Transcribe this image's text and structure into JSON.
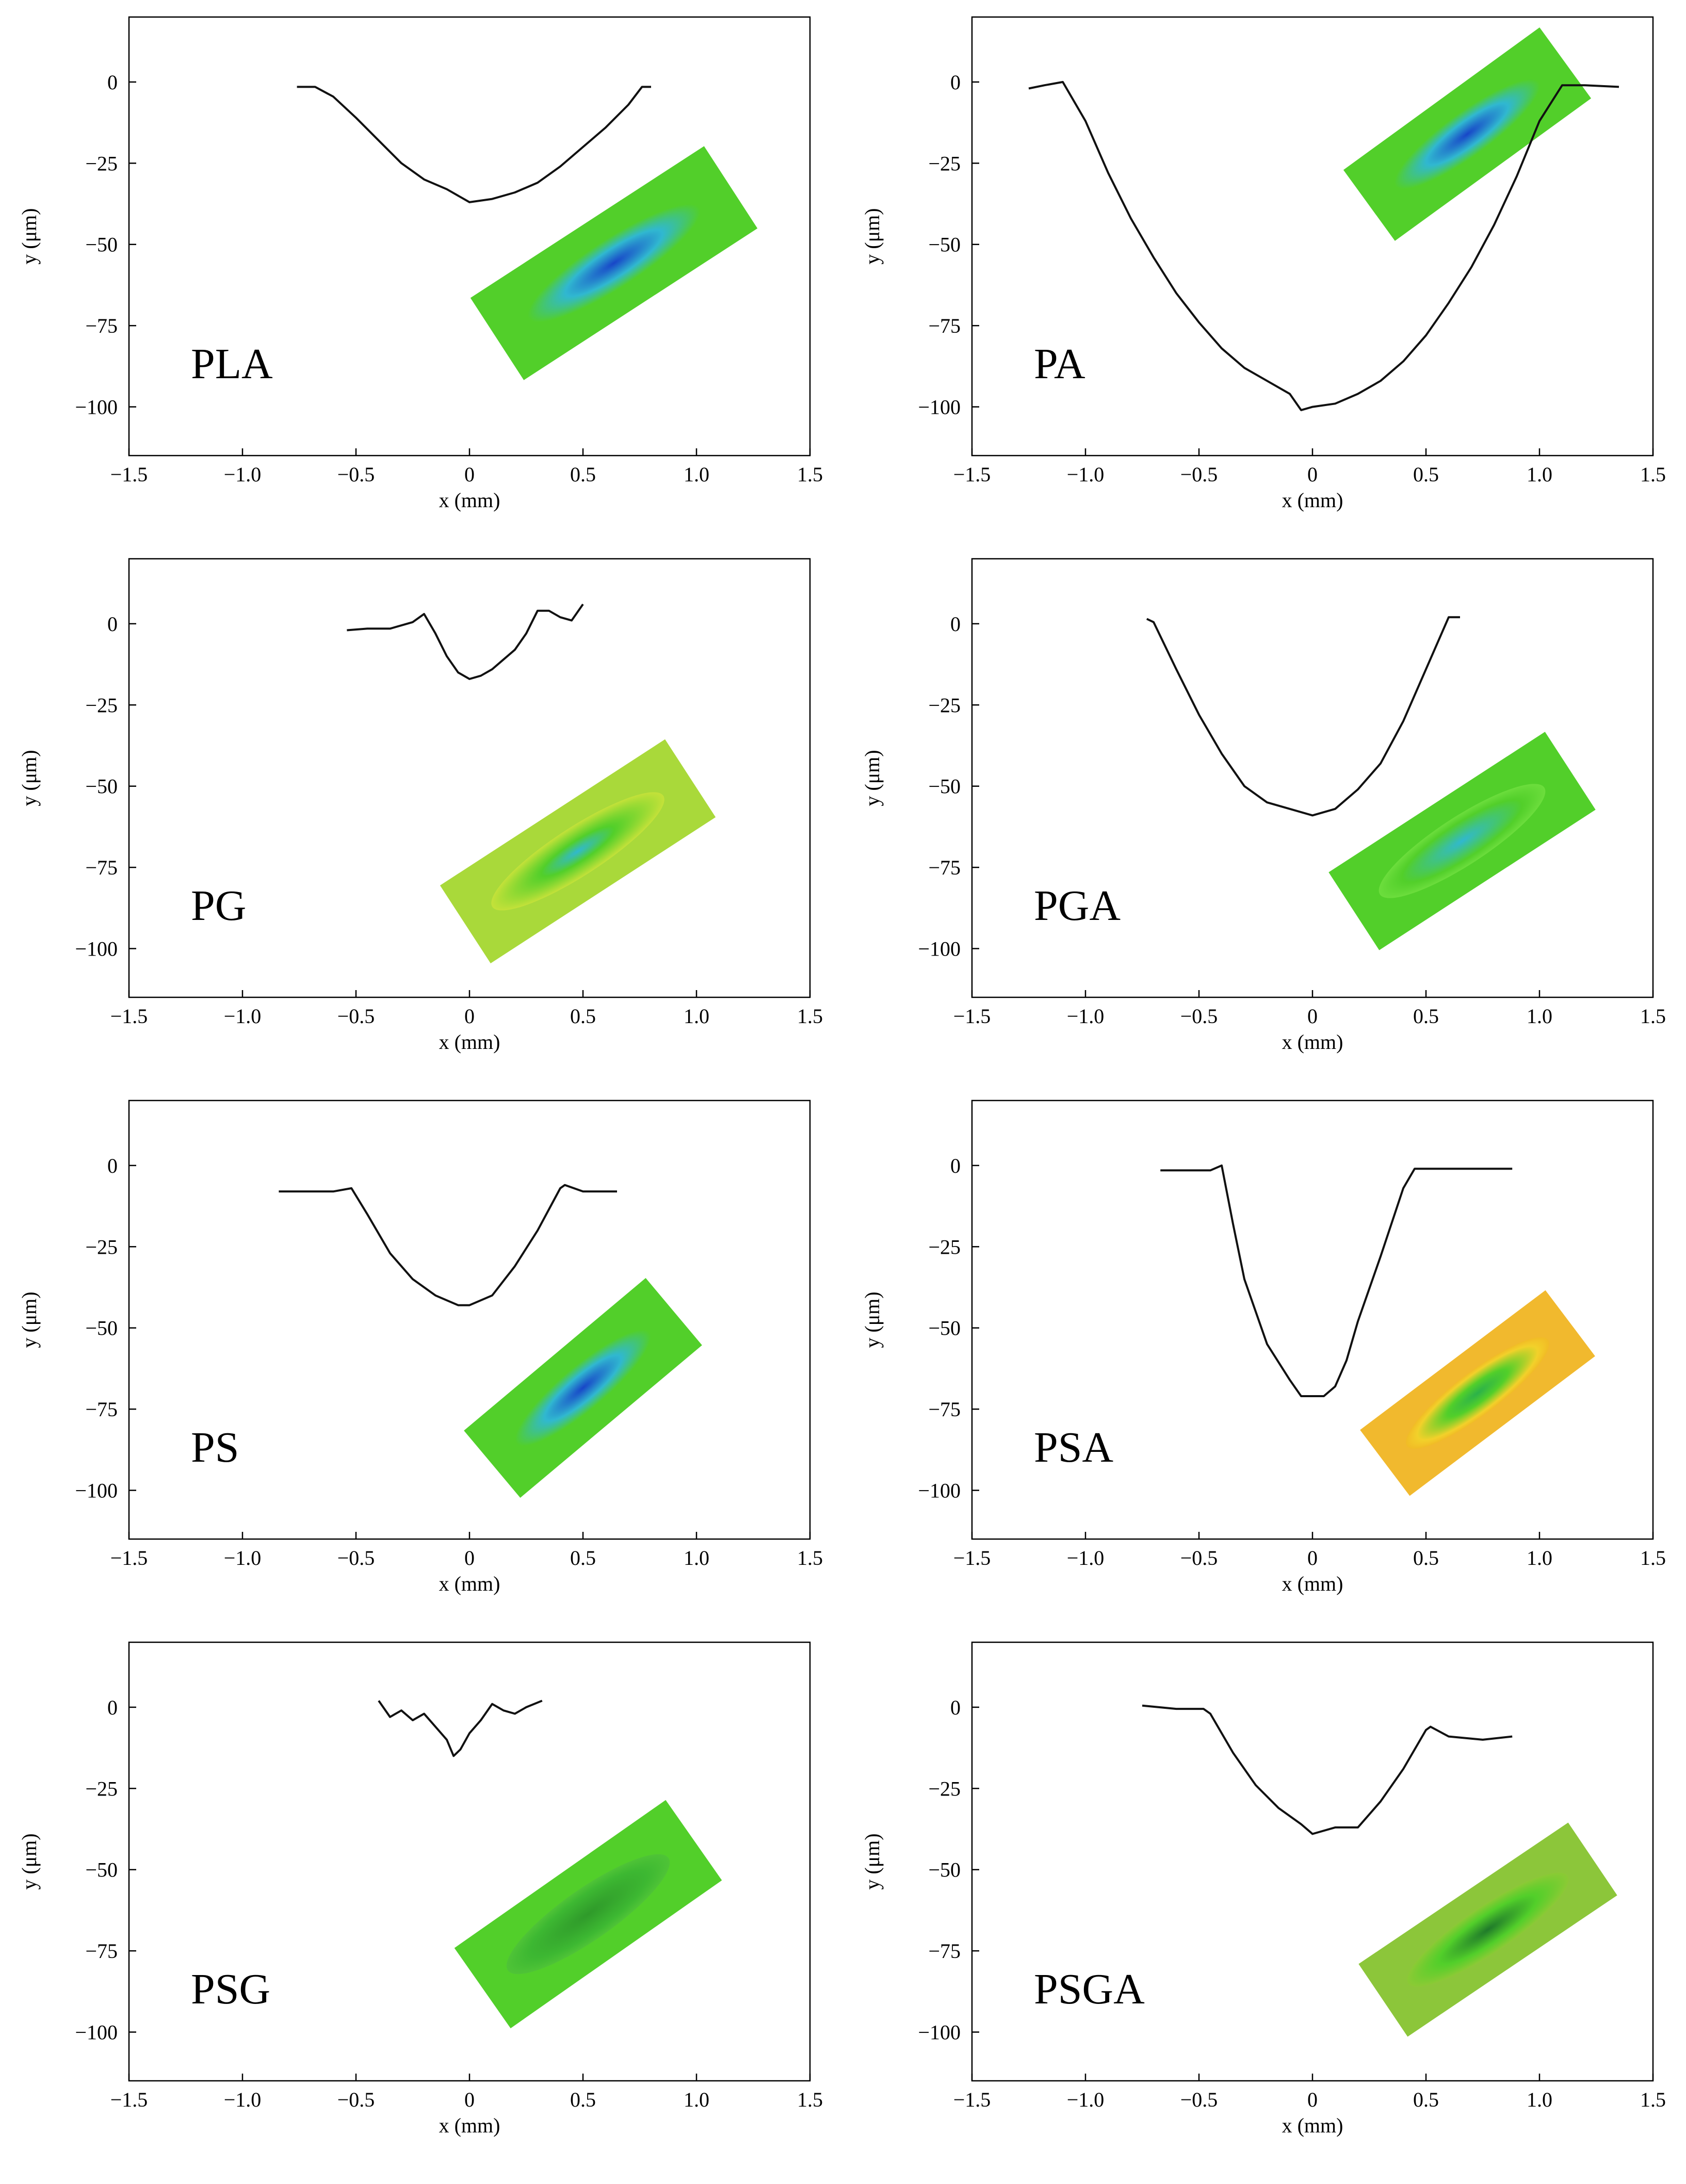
{
  "figure": {
    "rows": 4,
    "cols": 2
  },
  "colors": {
    "trace": "#111111",
    "frame": "#000000",
    "inset_low": "#1846c8",
    "inset_mid": "#30b8d0",
    "inset_high": "#52cf2a",
    "inset_peak": "#f2d12a"
  },
  "chart_data": [
    {
      "type": "line",
      "label": "PLA",
      "xlabel": "x (mm)",
      "ylabel": "y (μm)",
      "xlim": [
        -1.5,
        1.5
      ],
      "ylim": [
        -115,
        20
      ],
      "xticks": [
        -1.5,
        -1.0,
        -0.5,
        0,
        0.5,
        1.0,
        1.5
      ],
      "xtick_labels": [
        "−1.5",
        "−1.0",
        "−0.5",
        "0",
        "0.5",
        "1.0",
        "1.5"
      ],
      "yticks": [
        0,
        -25,
        -50,
        -75,
        -100
      ],
      "ytick_labels": [
        "0",
        "−25",
        "−50",
        "−75",
        "−100"
      ],
      "inset": "3D surface map of wear track",
      "series": [
        {
          "name": "PLA profile",
          "x": [
            -0.76,
            -0.68,
            -0.6,
            -0.5,
            -0.4,
            -0.3,
            -0.2,
            -0.1,
            0.0,
            0.1,
            0.2,
            0.3,
            0.4,
            0.5,
            0.6,
            0.7,
            0.76,
            0.8
          ],
          "y": [
            -1.5,
            -1.5,
            -4.5,
            -11,
            -18,
            -25,
            -30,
            -33,
            -37,
            -36,
            -34,
            -31,
            -26,
            -20,
            -14,
            -7,
            -1.5,
            -1.5
          ]
        }
      ]
    },
    {
      "type": "line",
      "label": "PA",
      "xlabel": "x (mm)",
      "ylabel": "y (μm)",
      "xlim": [
        -1.5,
        1.5
      ],
      "ylim": [
        -115,
        20
      ],
      "xticks": [
        -1.5,
        -1.0,
        -0.5,
        0,
        0.5,
        1.0,
        1.5
      ],
      "xtick_labels": [
        "−1.5",
        "−1.0",
        "−0.5",
        "0",
        "0.5",
        "1.0",
        "1.5"
      ],
      "yticks": [
        0,
        -25,
        -50,
        -75,
        -100
      ],
      "ytick_labels": [
        "0",
        "−25",
        "−50",
        "−75",
        "−100"
      ],
      "inset": "3D surface map of wear track",
      "series": [
        {
          "name": "PA profile",
          "x": [
            -1.25,
            -1.18,
            -1.1,
            -1.0,
            -0.9,
            -0.8,
            -0.7,
            -0.6,
            -0.5,
            -0.4,
            -0.3,
            -0.2,
            -0.1,
            -0.05,
            0.0,
            0.1,
            0.2,
            0.3,
            0.4,
            0.5,
            0.6,
            0.7,
            0.8,
            0.9,
            1.0,
            1.1,
            1.2,
            1.35
          ],
          "y": [
            -2,
            -1,
            0,
            -12,
            -28,
            -42,
            -54,
            -65,
            -74,
            -82,
            -88,
            -92,
            -96,
            -101,
            -100,
            -99,
            -96,
            -92,
            -86,
            -78,
            -68,
            -57,
            -44,
            -29,
            -12,
            -1,
            -1,
            -1.5
          ]
        }
      ]
    },
    {
      "type": "line",
      "label": "PG",
      "xlabel": "x (mm)",
      "ylabel": "y (μm)",
      "xlim": [
        -1.5,
        1.5
      ],
      "ylim": [
        -115,
        20
      ],
      "xticks": [
        -1.5,
        -1.0,
        -0.5,
        0,
        0.5,
        1.0,
        1.5
      ],
      "xtick_labels": [
        "−1.5",
        "−1.0",
        "−0.5",
        "0",
        "0.5",
        "1.0",
        "1.5"
      ],
      "yticks": [
        0,
        -25,
        -50,
        -75,
        -100
      ],
      "ytick_labels": [
        "0",
        "−25",
        "−50",
        "−75",
        "−100"
      ],
      "inset": "3D surface map of wear track",
      "series": [
        {
          "name": "PG profile",
          "x": [
            -0.54,
            -0.45,
            -0.35,
            -0.25,
            -0.2,
            -0.15,
            -0.1,
            -0.05,
            0.0,
            0.05,
            0.1,
            0.15,
            0.2,
            0.25,
            0.3,
            0.35,
            0.4,
            0.45,
            0.5
          ],
          "y": [
            -2,
            -1.5,
            -1.5,
            0.5,
            3,
            -3,
            -10,
            -15,
            -17,
            -16,
            -14,
            -11,
            -8,
            -3,
            4,
            4,
            2,
            1,
            6
          ]
        }
      ]
    },
    {
      "type": "line",
      "label": "PGA",
      "xlabel": "x (mm)",
      "ylabel": "y (μm)",
      "xlim": [
        -1.5,
        1.5
      ],
      "ylim": [
        -115,
        20
      ],
      "xticks": [
        -1.5,
        -1.0,
        -0.5,
        0,
        0.5,
        1.0,
        1.5
      ],
      "xtick_labels": [
        "−1.5",
        "−1.0",
        "−0.5",
        "0",
        "0.5",
        "1.0",
        "1.5"
      ],
      "yticks": [
        0,
        -25,
        -50,
        -75,
        -100
      ],
      "ytick_labels": [
        "0",
        "−25",
        "−50",
        "−75",
        "−100"
      ],
      "inset": "3D surface map of wear track",
      "series": [
        {
          "name": "PGA profile",
          "x": [
            -0.73,
            -0.7,
            -0.6,
            -0.5,
            -0.4,
            -0.3,
            -0.2,
            -0.1,
            0.0,
            0.1,
            0.2,
            0.3,
            0.4,
            0.5,
            0.55,
            0.6,
            0.65
          ],
          "y": [
            1.5,
            0.5,
            -14,
            -28,
            -40,
            -50,
            -55,
            -57,
            -59,
            -57,
            -51,
            -43,
            -30,
            -14,
            -6,
            2,
            2
          ]
        }
      ]
    },
    {
      "type": "line",
      "label": "PS",
      "xlabel": "x (mm)",
      "ylabel": "y (μm)",
      "xlim": [
        -1.5,
        1.5
      ],
      "ylim": [
        -115,
        20
      ],
      "xticks": [
        -1.5,
        -1.0,
        -0.5,
        0,
        0.5,
        1.0,
        1.5
      ],
      "xtick_labels": [
        "−1.5",
        "−1.0",
        "−0.5",
        "0",
        "0.5",
        "1.0",
        "1.5"
      ],
      "yticks": [
        0,
        -25,
        -50,
        -75,
        -100
      ],
      "ytick_labels": [
        "0",
        "−25",
        "−50",
        "−75",
        "−100"
      ],
      "inset": "3D surface map of wear track",
      "series": [
        {
          "name": "PS profile",
          "x": [
            -0.84,
            -0.7,
            -0.6,
            -0.52,
            -0.45,
            -0.35,
            -0.25,
            -0.15,
            -0.05,
            0.0,
            0.1,
            0.2,
            0.3,
            0.4,
            0.42,
            0.5,
            0.65
          ],
          "y": [
            -8,
            -8,
            -8,
            -7,
            -15,
            -27,
            -35,
            -40,
            -43,
            -43,
            -40,
            -31,
            -20,
            -7,
            -6,
            -8,
            -8
          ]
        }
      ]
    },
    {
      "type": "line",
      "label": "PSA",
      "xlabel": "x (mm)",
      "ylabel": "y (μm)",
      "xlim": [
        -1.5,
        1.5
      ],
      "ylim": [
        -115,
        20
      ],
      "xticks": [
        -1.5,
        -1.0,
        -0.5,
        0,
        0.5,
        1.0,
        1.5
      ],
      "xtick_labels": [
        "−1.5",
        "−1.0",
        "−0.5",
        "0",
        "0.5",
        "1.0",
        "1.5"
      ],
      "yticks": [
        0,
        -25,
        -50,
        -75,
        -100
      ],
      "ytick_labels": [
        "0",
        "−25",
        "−50",
        "−75",
        "−100"
      ],
      "inset": "3D surface map of wear track",
      "series": [
        {
          "name": "PSA profile",
          "x": [
            -0.67,
            -0.55,
            -0.45,
            -0.4,
            -0.35,
            -0.3,
            -0.2,
            -0.1,
            -0.05,
            0.0,
            0.05,
            0.1,
            0.15,
            0.2,
            0.3,
            0.4,
            0.45,
            0.6,
            0.88
          ],
          "y": [
            -1.5,
            -1.5,
            -1.5,
            0,
            -18,
            -35,
            -55,
            -66,
            -71,
            -71,
            -71,
            -68,
            -60,
            -48,
            -28,
            -7,
            -1,
            -1,
            -1
          ]
        }
      ]
    },
    {
      "type": "line",
      "label": "PSG",
      "xlabel": "x (mm)",
      "ylabel": "y (μm)",
      "xlim": [
        -1.5,
        1.5
      ],
      "ylim": [
        -115,
        20
      ],
      "xticks": [
        -1.5,
        -1.0,
        -0.5,
        0,
        0.5,
        1.0,
        1.5
      ],
      "xtick_labels": [
        "−1.5",
        "−1.0",
        "−0.5",
        "0",
        "0.5",
        "1.0",
        "1.5"
      ],
      "yticks": [
        0,
        -25,
        -50,
        -75,
        -100
      ],
      "ytick_labels": [
        "0",
        "−25",
        "−50",
        "−75",
        "−100"
      ],
      "inset": "3D surface map of wear track",
      "series": [
        {
          "name": "PSG profile",
          "x": [
            -0.4,
            -0.35,
            -0.3,
            -0.25,
            -0.2,
            -0.15,
            -0.1,
            -0.07,
            -0.04,
            0.0,
            0.05,
            0.1,
            0.15,
            0.2,
            0.25,
            0.32
          ],
          "y": [
            2,
            -3,
            -1,
            -4,
            -2,
            -6,
            -10,
            -15,
            -13,
            -8,
            -4,
            1,
            -1,
            -2,
            0,
            2
          ]
        }
      ]
    },
    {
      "type": "line",
      "label": "PSGA",
      "xlabel": "x (mm)",
      "ylabel": "y (μm)",
      "xlim": [
        -1.5,
        1.5
      ],
      "ylim": [
        -115,
        20
      ],
      "xticks": [
        -1.5,
        -1.0,
        -0.5,
        0,
        0.5,
        1.0,
        1.5
      ],
      "xtick_labels": [
        "−1.5",
        "−1.0",
        "−0.5",
        "0",
        "0.5",
        "1.0",
        "1.5"
      ],
      "yticks": [
        0,
        -25,
        -50,
        -75,
        -100
      ],
      "ytick_labels": [
        "0",
        "−25",
        "−50",
        "−75",
        "−100"
      ],
      "inset": "3D surface map of wear track",
      "series": [
        {
          "name": "PSGA profile",
          "x": [
            -0.75,
            -0.6,
            -0.48,
            -0.45,
            -0.35,
            -0.25,
            -0.15,
            -0.05,
            0.0,
            0.1,
            0.2,
            0.3,
            0.4,
            0.5,
            0.52,
            0.6,
            0.75,
            0.88
          ],
          "y": [
            0.5,
            -0.5,
            -0.5,
            -2,
            -14,
            -24,
            -31,
            -36,
            -39,
            -37,
            -37,
            -29,
            -19,
            -7,
            -6,
            -9,
            -10,
            -9
          ]
        }
      ]
    }
  ]
}
